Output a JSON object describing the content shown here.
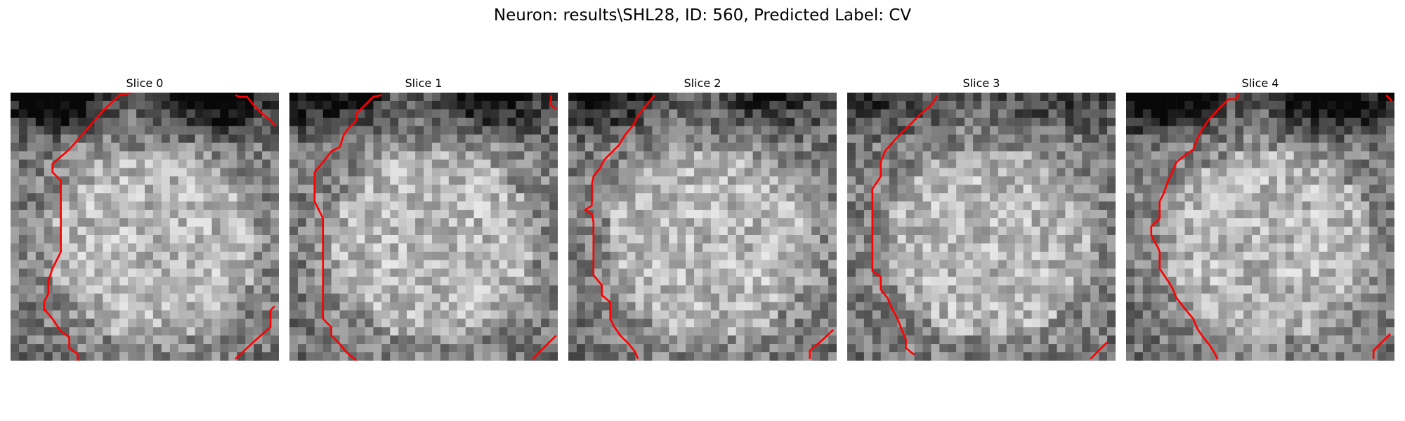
{
  "figure": {
    "title": "Neuron: results\\SHL28, ID: 560, Predicted Label: CV"
  },
  "panels": [
    {
      "title": "Slice 0",
      "seed": 11,
      "dark_top": 0.6,
      "boundary_color": "#ff0000"
    },
    {
      "title": "Slice 1",
      "seed": 27,
      "dark_top": 0.45,
      "boundary_color": "#ff0000"
    },
    {
      "title": "Slice 2",
      "seed": 43,
      "dark_top": 0.35,
      "boundary_color": "#ff0000"
    },
    {
      "title": "Slice 3",
      "seed": 59,
      "dark_top": 0.25,
      "boundary_color": "#ff0000"
    },
    {
      "title": "Slice 4",
      "seed": 71,
      "dark_top": 0.65,
      "boundary_color": "#ff0000"
    }
  ],
  "colormap": "gray",
  "grid_size": 32
}
